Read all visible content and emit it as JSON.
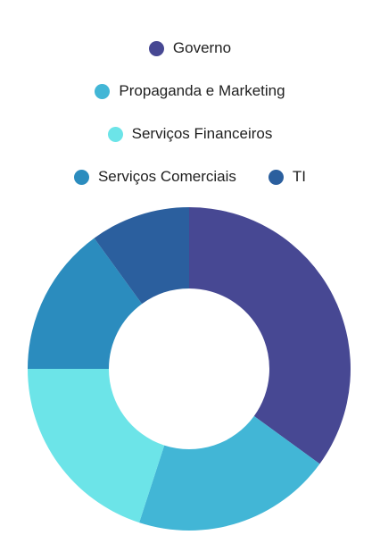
{
  "chart_data": {
    "type": "pie",
    "variant": "donut",
    "title": "",
    "legend_placement": "top",
    "categories": [
      "Governo",
      "Propaganda e Marketing",
      "Serviços Financeiros",
      "Serviços Comerciais",
      "TI"
    ],
    "values": [
      35,
      20,
      20,
      15,
      10
    ],
    "colors": [
      "#474893",
      "#42b6d6",
      "#6ce4e8",
      "#2b8cbe",
      "#2b5f9e"
    ]
  },
  "legend_rows": [
    [
      0
    ],
    [
      1
    ],
    [
      2
    ],
    [
      3,
      4
    ]
  ]
}
